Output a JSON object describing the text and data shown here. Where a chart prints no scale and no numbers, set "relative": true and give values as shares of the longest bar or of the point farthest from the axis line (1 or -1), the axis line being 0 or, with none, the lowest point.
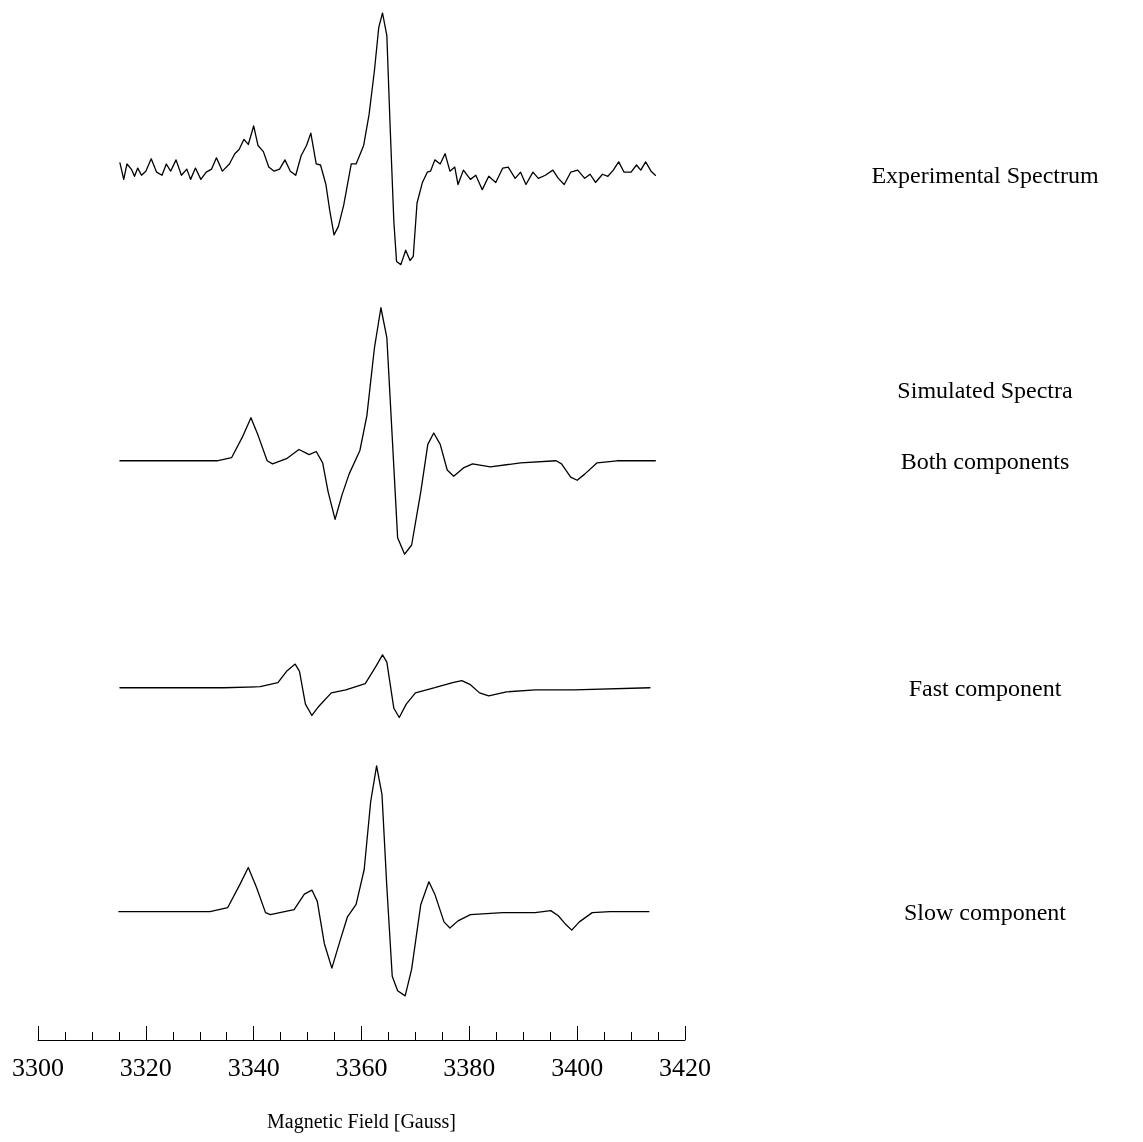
{
  "chart_data": {
    "type": "line",
    "xlabel": "Magnetic Field [Gauss]",
    "relative": true,
    "xlim": [
      3300,
      3420
    ],
    "tick_labels": "x",
    "annotations": [
      "Simulated Spectra"
    ],
    "xticks": [
      3300,
      {
        "value": 3305,
        "label": null
      },
      {
        "value": 3310,
        "label": null
      },
      {
        "value": 3315,
        "label": null
      },
      3320,
      {
        "value": 3325,
        "label": null
      },
      {
        "value": 3330,
        "label": null
      },
      {
        "value": 3335,
        "label": null
      },
      3340,
      {
        "value": 3345,
        "label": null
      },
      {
        "value": 3350,
        "label": null
      },
      {
        "value": 3355,
        "label": null
      },
      3360,
      {
        "value": 3365,
        "label": null
      },
      {
        "value": 3370,
        "label": null
      },
      {
        "value": 3375,
        "label": null
      },
      3380,
      {
        "value": 3385,
        "label": null
      },
      {
        "value": 3390,
        "label": null
      },
      {
        "value": 3395,
        "label": null
      },
      3400,
      {
        "value": 3405,
        "label": null
      },
      {
        "value": 3410,
        "label": null
      },
      {
        "value": 3415,
        "label": null
      },
      3420
    ],
    "series": [
      {
        "name": "Experimental Spectrum",
        "color": "#000000",
        "x": [
          3315.2,
          3315.9,
          3316.5,
          3317.3,
          3317.9,
          3318.5,
          3319.2,
          3320.0,
          3321.0,
          3322.0,
          3323.0,
          3323.8,
          3324.6,
          3325.6,
          3326.6,
          3327.6,
          3328.3,
          3329.2,
          3330.2,
          3331.2,
          3332.2,
          3333.1,
          3334.2,
          3335.5,
          3336.5,
          3337.3,
          3338.2,
          3339.0,
          3340.0,
          3340.8,
          3341.8,
          3342.8,
          3343.8,
          3344.8,
          3345.8,
          3346.8,
          3347.8,
          3348.8,
          3349.8,
          3350.6,
          3351.6,
          3352.4,
          3353.4,
          3354.1,
          3354.9,
          3355.7,
          3356.7,
          3358.1,
          3359.0,
          3360.4,
          3361.4,
          3362.4,
          3363.2,
          3363.9,
          3364.7,
          3365.3,
          3366.0,
          3366.5,
          3367.3,
          3368.2,
          3369.0,
          3369.6,
          3370.3,
          3371.3,
          3372.2,
          3372.8,
          3373.6,
          3374.6,
          3375.5,
          3376.4,
          3377.3,
          3377.9,
          3378.9,
          3380.2,
          3381.2,
          3382.4,
          3383.6,
          3384.9,
          3386.2,
          3387.2,
          3388.5,
          3389.5,
          3390.5,
          3391.8,
          3392.8,
          3394.1,
          3395.5,
          3396.5,
          3397.6,
          3398.8,
          3400.1,
          3401.4,
          3402.4,
          3403.4,
          3404.7,
          3405.7,
          3406.7,
          3407.7,
          3408.7,
          3410.0,
          3411.0,
          3411.8,
          3412.7,
          3413.7,
          3414.5
        ],
        "values": [
          0.854,
          0.838,
          0.853,
          0.848,
          0.841,
          0.849,
          0.842,
          0.846,
          0.858,
          0.845,
          0.842,
          0.853,
          0.846,
          0.857,
          0.842,
          0.848,
          0.838,
          0.849,
          0.838,
          0.845,
          0.848,
          0.859,
          0.846,
          0.853,
          0.863,
          0.867,
          0.877,
          0.872,
          0.89,
          0.871,
          0.865,
          0.85,
          0.846,
          0.848,
          0.857,
          0.846,
          0.842,
          0.861,
          0.871,
          0.883,
          0.853,
          0.852,
          0.833,
          0.808,
          0.784,
          0.792,
          0.813,
          0.853,
          0.853,
          0.871,
          0.901,
          0.944,
          0.986,
          1.0,
          0.978,
          0.891,
          0.797,
          0.758,
          0.755,
          0.769,
          0.759,
          0.763,
          0.815,
          0.835,
          0.845,
          0.846,
          0.857,
          0.853,
          0.863,
          0.846,
          0.85,
          0.833,
          0.847,
          0.838,
          0.842,
          0.828,
          0.841,
          0.835,
          0.849,
          0.85,
          0.839,
          0.845,
          0.833,
          0.845,
          0.839,
          0.842,
          0.847,
          0.839,
          0.833,
          0.845,
          0.847,
          0.839,
          0.843,
          0.835,
          0.843,
          0.841,
          0.847,
          0.855,
          0.845,
          0.845,
          0.852,
          0.847,
          0.855,
          0.846,
          0.842
        ]
      },
      {
        "name": "Both components",
        "color": "#000000",
        "x": [
          3315.2,
          3333.2,
          3335.9,
          3337.9,
          3339.5,
          3340.8,
          3342.5,
          3343.5,
          3346.1,
          3348.4,
          3350.3,
          3351.6,
          3352.8,
          3353.8,
          3355.1,
          3356.4,
          3357.7,
          3359.7,
          3361.0,
          3362.4,
          3363.6,
          3364.7,
          3365.7,
          3366.7,
          3368.0,
          3369.3,
          3371.0,
          3372.3,
          3373.4,
          3374.6,
          3375.9,
          3377.1,
          3378.9,
          3380.6,
          3383.9,
          3389.5,
          3396.1,
          3397.1,
          3398.8,
          3400.0,
          3401.4,
          3403.7,
          3407.4,
          3414.5
        ],
        "values": [
          0.564,
          0.564,
          0.567,
          0.587,
          0.606,
          0.589,
          0.564,
          0.561,
          0.566,
          0.575,
          0.57,
          0.573,
          0.562,
          0.534,
          0.507,
          0.531,
          0.551,
          0.574,
          0.608,
          0.674,
          0.713,
          0.684,
          0.587,
          0.489,
          0.473,
          0.482,
          0.534,
          0.58,
          0.591,
          0.58,
          0.555,
          0.549,
          0.557,
          0.561,
          0.558,
          0.562,
          0.564,
          0.561,
          0.548,
          0.545,
          0.551,
          0.562,
          0.564,
          0.564
        ]
      },
      {
        "name": "Fast component",
        "color": "#000000",
        "x": [
          3315.2,
          3334.5,
          3341.2,
          3344.5,
          3346.1,
          3347.7,
          3348.5,
          3349.6,
          3350.8,
          3352.1,
          3354.4,
          3357.1,
          3360.7,
          3362.7,
          3363.9,
          3364.7,
          3366.0,
          3367.0,
          3368.3,
          3370.0,
          3373.6,
          3376.9,
          3378.6,
          3380.2,
          3381.9,
          3383.6,
          3386.9,
          3392.2,
          3399.4,
          3413.5
        ],
        "values": [
          0.343,
          0.343,
          0.344,
          0.348,
          0.359,
          0.366,
          0.359,
          0.327,
          0.316,
          0.325,
          0.338,
          0.341,
          0.347,
          0.364,
          0.375,
          0.368,
          0.323,
          0.314,
          0.327,
          0.338,
          0.343,
          0.348,
          0.35,
          0.346,
          0.338,
          0.335,
          0.339,
          0.341,
          0.341,
          0.343
        ]
      },
      {
        "name": "Slow component",
        "color": "#000000",
        "x": [
          3315.0,
          3331.9,
          3335.2,
          3337.5,
          3339.0,
          3340.5,
          3342.2,
          3343.1,
          3347.5,
          3349.4,
          3350.8,
          3351.8,
          3353.1,
          3354.5,
          3356.1,
          3357.4,
          3359.0,
          3360.5,
          3361.7,
          3362.8,
          3363.8,
          3364.7,
          3365.7,
          3366.7,
          3368.1,
          3369.3,
          3371.0,
          3372.5,
          3373.6,
          3375.3,
          3376.4,
          3377.9,
          3380.2,
          3386.2,
          3392.2,
          3395.1,
          3396.5,
          3397.8,
          3399.0,
          3400.4,
          3402.8,
          3406.1,
          3413.3
        ],
        "values": [
          0.125,
          0.125,
          0.129,
          0.152,
          0.168,
          0.149,
          0.124,
          0.122,
          0.127,
          0.142,
          0.146,
          0.135,
          0.094,
          0.07,
          0.098,
          0.12,
          0.132,
          0.166,
          0.232,
          0.267,
          0.239,
          0.149,
          0.062,
          0.048,
          0.043,
          0.069,
          0.132,
          0.154,
          0.142,
          0.115,
          0.109,
          0.116,
          0.122,
          0.124,
          0.124,
          0.126,
          0.121,
          0.113,
          0.107,
          0.115,
          0.124,
          0.125,
          0.125
        ]
      }
    ]
  }
}
